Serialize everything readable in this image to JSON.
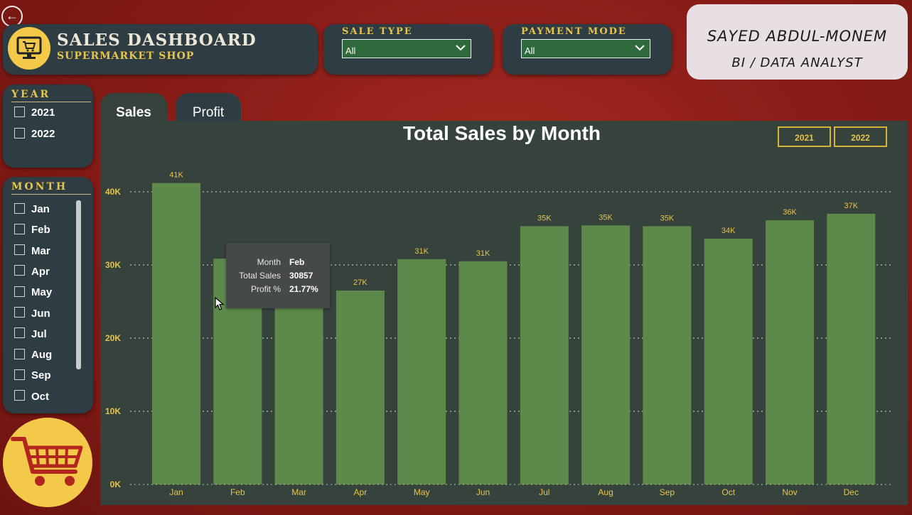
{
  "header": {
    "title": "SALES DASHBOARD",
    "subtitle": "SUPERMARKET SHOP"
  },
  "filters": {
    "sale_type": {
      "label": "SALE TYPE",
      "value": "All"
    },
    "payment_mode": {
      "label": "PAYMENT MODE",
      "value": "All"
    }
  },
  "author": {
    "name": "SAYED ABDUL-MONEM",
    "role": "BI / DATA ANALYST"
  },
  "year_slicer": {
    "title": "YEAR",
    "items": [
      "2021",
      "2022"
    ]
  },
  "month_slicer": {
    "title": "MONTH",
    "items": [
      "Jan",
      "Feb",
      "Mar",
      "Apr",
      "May",
      "Jun",
      "Jul",
      "Aug",
      "Sep",
      "Oct"
    ]
  },
  "tabs": [
    "Sales",
    "Profit"
  ],
  "year_buttons": [
    "2021",
    "2022"
  ],
  "tooltip": {
    "rows": [
      {
        "key": "Month",
        "value": "Feb"
      },
      {
        "key": "Total Sales",
        "value": "30857"
      },
      {
        "key": "Profit %",
        "value": "21.77%"
      }
    ]
  },
  "colors": {
    "background": "#8a1c17",
    "panel": "#2e3d44",
    "accent": "#e7c44a",
    "bar": "#5d8a4b",
    "chart_bg": "#36423c"
  },
  "chart_data": {
    "type": "bar",
    "title": "Total Sales by Month",
    "categories": [
      "Jan",
      "Feb",
      "Mar",
      "Apr",
      "May",
      "Jun",
      "Jul",
      "Aug",
      "Sep",
      "Oct",
      "Nov",
      "Dec"
    ],
    "values": [
      41200,
      30857,
      28500,
      26500,
      30800,
      30500,
      35300,
      35400,
      35300,
      33600,
      36100,
      37000
    ],
    "data_labels": [
      "41K",
      "",
      "",
      "27K",
      "31K",
      "31K",
      "35K",
      "35K",
      "35K",
      "34K",
      "36K",
      "37K"
    ],
    "y_ticks": [
      0,
      10000,
      20000,
      30000,
      40000
    ],
    "y_tick_labels": [
      "0K",
      "10K",
      "20K",
      "30K",
      "40K"
    ],
    "ylim": [
      0,
      42000
    ],
    "grid": true,
    "xlabel": "",
    "ylabel": ""
  }
}
